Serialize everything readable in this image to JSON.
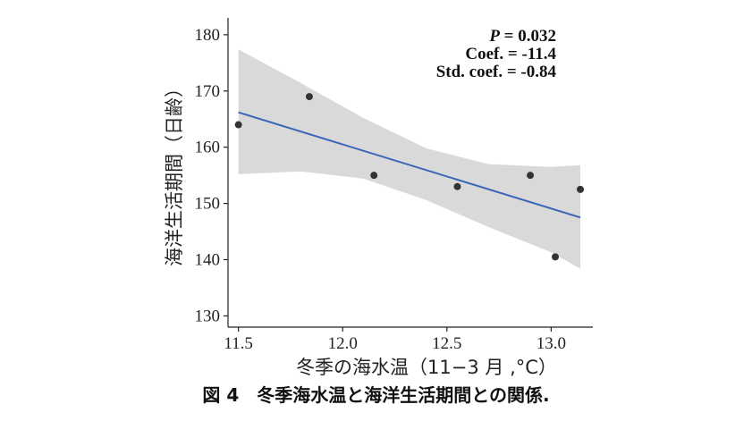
{
  "chart_data": {
    "type": "scatter",
    "x": [
      11.5,
      11.84,
      12.15,
      12.55,
      12.9,
      13.02,
      13.14
    ],
    "y": [
      164,
      169,
      155,
      153,
      155,
      140.5,
      152.5
    ],
    "fit": {
      "x": [
        11.5,
        13.14
      ],
      "y": [
        166.2,
        147.5
      ]
    },
    "band": {
      "x": [
        11.5,
        11.8,
        12.1,
        12.4,
        12.7,
        13.0,
        13.14
      ],
      "upper": [
        177.4,
        171.4,
        165.2,
        159.8,
        157.0,
        156.5,
        156.8
      ],
      "lower": [
        155.2,
        155.7,
        154.4,
        150.6,
        145.8,
        141.3,
        138.4
      ]
    },
    "xlim": [
      11.45,
      13.2
    ],
    "ylim": [
      128,
      183
    ],
    "xticks": [
      11.5,
      12.0,
      12.5,
      13.0
    ],
    "xtick_labels": [
      "11.5",
      "12.0",
      "12.5",
      "13.0"
    ],
    "yticks": [
      130,
      140,
      150,
      160,
      170,
      180
    ],
    "ytick_labels": [
      "130",
      "140",
      "150",
      "160",
      "170",
      "180"
    ],
    "xlabel": "冬季の海水温（11−3 月 ,°C）",
    "ylabel": "海洋生活期間（日齢）",
    "annotations": [
      "P = 0.032",
      "Coef. = -11.4",
      "Std. coef. = -0.84"
    ],
    "grid": false,
    "colors": {
      "points": "#333333",
      "fit_line": "#3a66b7",
      "band": "#d9d9d9"
    }
  },
  "caption": "図 4　冬季海水温と海洋生活期間との関係."
}
